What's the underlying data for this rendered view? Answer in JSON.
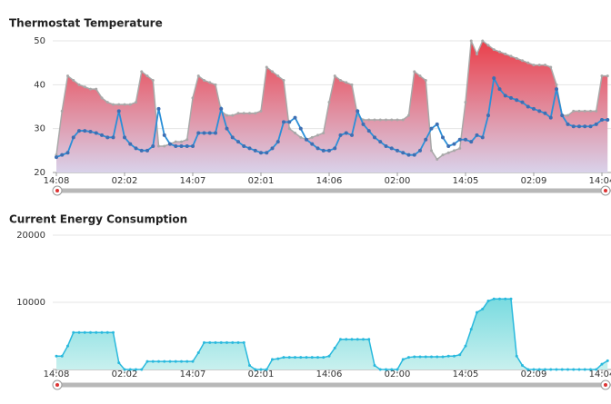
{
  "chart_data": [
    {
      "type": "area",
      "title": "Thermostat Temperature",
      "categories": [
        "14:08",
        null,
        null,
        null,
        null,
        null,
        null,
        null,
        null,
        null,
        null,
        null,
        "02:02",
        null,
        null,
        null,
        null,
        null,
        null,
        null,
        null,
        null,
        null,
        null,
        "14:07",
        null,
        null,
        null,
        null,
        null,
        null,
        null,
        null,
        null,
        null,
        null,
        "02:01",
        null,
        null,
        null,
        null,
        null,
        null,
        null,
        null,
        null,
        null,
        null,
        "14:06",
        null,
        null,
        null,
        null,
        null,
        null,
        null,
        null,
        null,
        null,
        null,
        "02:00",
        null,
        null,
        null,
        null,
        null,
        null,
        null,
        null,
        null,
        null,
        null,
        "14:05",
        null,
        null,
        null,
        null,
        null,
        null,
        null,
        null,
        null,
        null,
        null,
        "02:09",
        null,
        null,
        null,
        null,
        null,
        null,
        null,
        null,
        null,
        null,
        null,
        "14:04",
        null
      ],
      "ylim": [
        20,
        50
      ],
      "yticks": [
        20,
        30,
        40,
        50
      ],
      "grid": true,
      "series": [
        {
          "type": "area",
          "color": "#e8464f",
          "values": [
            24,
            34,
            42,
            41,
            40,
            39.5,
            39,
            39,
            37,
            36,
            35.5,
            35.5,
            35.5,
            35.5,
            36,
            43,
            42,
            41,
            26,
            26,
            26.5,
            27,
            27,
            27.5,
            37,
            42,
            41,
            40.5,
            40,
            34,
            33,
            33,
            33.5,
            33.5,
            33.5,
            33.5,
            34,
            44,
            43,
            42,
            41,
            30,
            29,
            28,
            27.5,
            28,
            28.5,
            29,
            36,
            42,
            41,
            40.5,
            40,
            33,
            32,
            32,
            32,
            32,
            32,
            32,
            32,
            32,
            33,
            43,
            42,
            41,
            25,
            23,
            24,
            24.5,
            25,
            25.5,
            36,
            50,
            47,
            50,
            49,
            48,
            47.5,
            47,
            46.5,
            46,
            45.5,
            45,
            44.5,
            44.5,
            44.5,
            44,
            40,
            33,
            33,
            34,
            34,
            34,
            34,
            34,
            42,
            42
          ]
        },
        {
          "type": "line",
          "color": "#2a8fd8",
          "values": [
            23.5,
            24,
            24.5,
            28,
            29.5,
            29.5,
            29.3,
            29,
            28.5,
            28,
            28,
            34,
            28,
            26.5,
            25.5,
            25,
            25,
            26,
            34.5,
            28.5,
            26.5,
            26,
            26,
            26,
            26,
            29,
            29,
            29,
            29,
            34.5,
            30,
            28,
            27,
            26,
            25.5,
            25,
            24.5,
            24.5,
            25.5,
            27,
            31.5,
            31.5,
            32.5,
            30,
            27.5,
            26.5,
            25.5,
            25,
            25,
            25.5,
            28.5,
            29,
            28.5,
            34,
            31,
            29.5,
            28,
            27,
            26,
            25.5,
            25,
            24.5,
            24,
            24,
            25,
            27.5,
            30,
            31,
            28,
            26,
            26.5,
            27.5,
            27.5,
            27,
            28.5,
            28,
            33,
            41.5,
            39,
            37.5,
            37,
            36.5,
            36,
            35,
            34.5,
            34,
            33.5,
            32.5,
            39,
            33,
            31,
            30.5,
            30.5,
            30.5,
            30.5,
            31,
            32,
            32
          ]
        }
      ]
    },
    {
      "type": "area",
      "title": "Current Energy Consumption",
      "categories": [
        "14:08",
        null,
        null,
        null,
        null,
        null,
        null,
        null,
        null,
        null,
        null,
        null,
        "02:02",
        null,
        null,
        null,
        null,
        null,
        null,
        null,
        null,
        null,
        null,
        null,
        "14:07",
        null,
        null,
        null,
        null,
        null,
        null,
        null,
        null,
        null,
        null,
        null,
        "02:01",
        null,
        null,
        null,
        null,
        null,
        null,
        null,
        null,
        null,
        null,
        null,
        "14:06",
        null,
        null,
        null,
        null,
        null,
        null,
        null,
        null,
        null,
        null,
        null,
        "02:00",
        null,
        null,
        null,
        null,
        null,
        null,
        null,
        null,
        null,
        null,
        null,
        "14:05",
        null,
        null,
        null,
        null,
        null,
        null,
        null,
        null,
        null,
        null,
        null,
        "02:09",
        null,
        null,
        null,
        null,
        null,
        null,
        null,
        null,
        null,
        null,
        null,
        "14:04",
        null
      ],
      "ylim": [
        0,
        20000
      ],
      "yticks": [
        10000,
        20000
      ],
      "grid": true,
      "series": [
        {
          "type": "area",
          "color": "#29b9dd",
          "values": [
            2000,
            2000,
            3500,
            5500,
            5500,
            5500,
            5500,
            5500,
            5500,
            5500,
            5500,
            1000,
            0,
            0,
            0,
            0,
            1200,
            1200,
            1200,
            1200,
            1200,
            1200,
            1200,
            1200,
            1200,
            2500,
            4000,
            4000,
            4000,
            4000,
            4000,
            4000,
            4000,
            4000,
            600,
            0,
            0,
            0,
            1500,
            1600,
            1800,
            1800,
            1800,
            1800,
            1800,
            1800,
            1800,
            1800,
            2000,
            3200,
            4500,
            4500,
            4500,
            4500,
            4500,
            4500,
            600,
            0,
            0,
            0,
            0,
            1500,
            1800,
            1900,
            1900,
            1900,
            1900,
            1900,
            1900,
            2000,
            2000,
            2200,
            3500,
            6000,
            8500,
            9000,
            10200,
            10500,
            10500,
            10500,
            10500,
            2000,
            600,
            0,
            0,
            0,
            0,
            0,
            0,
            0,
            0,
            0,
            0,
            0,
            0,
            0,
            800,
            1300
          ]
        }
      ]
    }
  ]
}
